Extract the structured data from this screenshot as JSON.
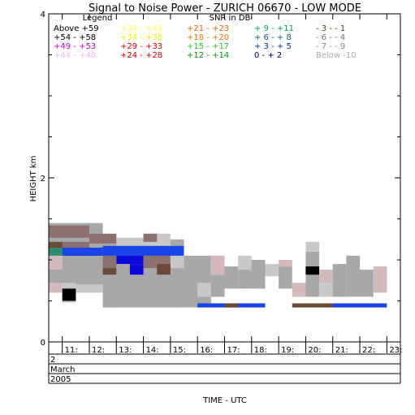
{
  "chart_data": {
    "type": "heatmap",
    "title": "Signal to Noise Power - ZURICH 06670 - LOW MODE",
    "ylabel": "HEIGHT km",
    "xlabel": "TIME - UTC",
    "ylim": [
      0,
      4
    ],
    "xlim": [
      10.5,
      23.5
    ],
    "y_ticks": [
      "0",
      "2",
      "4"
    ],
    "x_ticks": [
      {
        "x": 11,
        "label": "11:"
      },
      {
        "x": 12,
        "label": "12:"
      },
      {
        "x": 13,
        "label": "13:"
      },
      {
        "x": 14,
        "label": "14:"
      },
      {
        "x": 15,
        "label": "15:"
      },
      {
        "x": 16,
        "label": "16:"
      },
      {
        "x": 17,
        "label": "17:"
      },
      {
        "x": 18,
        "label": "18:"
      },
      {
        "x": 19,
        "label": "19:"
      },
      {
        "x": 20,
        "label": "20:"
      },
      {
        "x": 21,
        "label": "21:"
      },
      {
        "x": 22,
        "label": "22:"
      },
      {
        "x": 23,
        "label": "23:"
      }
    ],
    "date_rows": [
      "2",
      "March",
      "2005"
    ],
    "legend": {
      "title": "Legend",
      "units": "SNR in DB",
      "placement": "top",
      "entries": [
        {
          "label": "Above +59",
          "color": "#000000"
        },
        {
          "label": "+54 - +58",
          "color": "#000000"
        },
        {
          "label": "+49 - +53",
          "color": "#cc00cc"
        },
        {
          "label": "+44 - +48",
          "color": "#eebbee"
        },
        {
          "label": "+39 - +43",
          "color": "#ffff55"
        },
        {
          "label": "+34 - +38",
          "color": "#eeee00"
        },
        {
          "label": "+29 - +33",
          "color": "#dd0000"
        },
        {
          "label": "+24 - +28",
          "color": "#cc0000"
        },
        {
          "label": "+21 - +23",
          "color": "#ee6600"
        },
        {
          "label": "+18 - +20",
          "color": "#ee7700"
        },
        {
          "label": "+15 - +17",
          "color": "#22cc22"
        },
        {
          "label": "+12 - +14",
          "color": "#009900"
        },
        {
          "label": "+ 9 - +11",
          "color": "#009966"
        },
        {
          "label": "+ 6 - + 8",
          "color": "#006666"
        },
        {
          "label": "+ 3 - + 5",
          "color": "#003399"
        },
        {
          "label": "0 - + 2",
          "color": "#000066"
        },
        {
          "label": "- 3 - - 1",
          "color": "#663322"
        },
        {
          "label": "- 6 - - 4",
          "color": "#777777"
        },
        {
          "label": "- 7 - - 9",
          "color": "#888888"
        },
        {
          "label": "Below -10",
          "color": "#aaaaaa"
        }
      ]
    },
    "palette": {
      "g": "#a8a8a8",
      "l": "#c8c8c8",
      "p": "#d2b9be",
      "d": "#8c7070",
      "b": "#6b4a3a",
      "B": "#1a44e8",
      "N": "#0a0ad8",
      "k": "#000000",
      "t": "#2e8b6e"
    },
    "cells": [
      {
        "x0": 10.5,
        "x1": 12.5,
        "y0": 0.75,
        "y1": 1.45,
        "c": "g"
      },
      {
        "x0": 10.5,
        "x1": 12.0,
        "y0": 1.27,
        "y1": 1.42,
        "c": "d"
      },
      {
        "x0": 12.0,
        "x1": 12.5,
        "y0": 1.22,
        "y1": 1.32,
        "c": "l"
      },
      {
        "x0": 10.5,
        "x1": 11.0,
        "y0": 1.05,
        "y1": 1.2,
        "c": "t"
      },
      {
        "x0": 10.5,
        "x1": 11.0,
        "y0": 1.15,
        "y1": 1.22,
        "c": "b"
      },
      {
        "x0": 11.0,
        "x1": 12.0,
        "y0": 1.15,
        "y1": 1.22,
        "c": "d"
      },
      {
        "x0": 11.0,
        "x1": 12.5,
        "y0": 1.05,
        "y1": 1.15,
        "c": "B"
      },
      {
        "x0": 10.5,
        "x1": 11.0,
        "y0": 0.88,
        "y1": 1.05,
        "c": "p"
      },
      {
        "x0": 10.5,
        "x1": 12.5,
        "y0": 0.7,
        "y1": 0.82,
        "c": "g"
      },
      {
        "x0": 11.0,
        "x1": 11.5,
        "y0": 0.48,
        "y1": 0.72,
        "c": "l"
      },
      {
        "x0": 11.5,
        "x1": 12.5,
        "y0": 0.6,
        "y1": 0.7,
        "c": "l"
      },
      {
        "x0": 10.5,
        "x1": 11.0,
        "y0": 0.6,
        "y1": 0.72,
        "c": "p"
      },
      {
        "x0": 11.0,
        "x1": 11.5,
        "y0": 0.5,
        "y1": 0.65,
        "c": "k"
      },
      {
        "x0": 12.5,
        "x1": 13.0,
        "y0": 0.42,
        "y1": 0.62,
        "c": "l"
      },
      {
        "x0": 12.5,
        "x1": 15.5,
        "y0": 0.42,
        "y1": 1.25,
        "c": "g"
      },
      {
        "x0": 12.0,
        "x1": 13.0,
        "y0": 1.2,
        "y1": 1.32,
        "c": "d"
      },
      {
        "x0": 13.0,
        "x1": 14.0,
        "y0": 1.12,
        "y1": 1.27,
        "c": "l"
      },
      {
        "x0": 14.0,
        "x1": 15.0,
        "y0": 1.17,
        "y1": 1.32,
        "c": "l"
      },
      {
        "x0": 14.0,
        "x1": 14.5,
        "y0": 1.22,
        "y1": 1.32,
        "c": "d"
      },
      {
        "x0": 12.5,
        "x1": 15.5,
        "y0": 1.05,
        "y1": 1.17,
        "c": "B"
      },
      {
        "x0": 13.0,
        "x1": 14.0,
        "y0": 0.95,
        "y1": 1.05,
        "c": "N"
      },
      {
        "x0": 13.5,
        "x1": 14.0,
        "y0": 0.82,
        "y1": 0.95,
        "c": "N"
      },
      {
        "x0": 12.5,
        "x1": 13.0,
        "y0": 0.9,
        "y1": 1.05,
        "c": "d"
      },
      {
        "x0": 12.5,
        "x1": 13.0,
        "y0": 0.82,
        "y1": 0.9,
        "c": "b"
      },
      {
        "x0": 14.0,
        "x1": 15.0,
        "y0": 0.9,
        "y1": 1.05,
        "c": "d"
      },
      {
        "x0": 14.5,
        "x1": 15.0,
        "y0": 0.82,
        "y1": 0.95,
        "c": "b"
      },
      {
        "x0": 15.0,
        "x1": 15.5,
        "y0": 0.9,
        "y1": 1.05,
        "c": "l"
      },
      {
        "x0": 15.5,
        "x1": 16.5,
        "y0": 0.42,
        "y1": 1.05,
        "c": "g"
      },
      {
        "x0": 16.0,
        "x1": 16.5,
        "y0": 0.55,
        "y1": 0.72,
        "c": "l"
      },
      {
        "x0": 16.5,
        "x1": 17.0,
        "y0": 0.82,
        "y1": 1.05,
        "c": "p"
      },
      {
        "x0": 16.5,
        "x1": 17.0,
        "y0": 0.55,
        "y1": 0.82,
        "c": "g"
      },
      {
        "x0": 17.0,
        "x1": 17.5,
        "y0": 0.65,
        "y1": 0.92,
        "c": "g"
      },
      {
        "x0": 17.5,
        "x1": 18.0,
        "y0": 0.65,
        "y1": 0.88,
        "c": "g"
      },
      {
        "x0": 17.5,
        "x1": 18.0,
        "y0": 0.88,
        "y1": 1.05,
        "c": "l"
      },
      {
        "x0": 18.0,
        "x1": 18.5,
        "y0": 0.65,
        "y1": 1.0,
        "c": "g"
      },
      {
        "x0": 18.5,
        "x1": 19.0,
        "y0": 0.8,
        "y1": 0.95,
        "c": "l"
      },
      {
        "x0": 19.0,
        "x1": 19.5,
        "y0": 0.65,
        "y1": 0.92,
        "c": "g"
      },
      {
        "x0": 19.0,
        "x1": 19.5,
        "y0": 0.92,
        "y1": 1.0,
        "c": "p"
      },
      {
        "x0": 19.5,
        "x1": 20.0,
        "y0": 0.55,
        "y1": 0.72,
        "c": "p"
      },
      {
        "x0": 20.0,
        "x1": 20.5,
        "y0": 0.55,
        "y1": 1.1,
        "c": "g"
      },
      {
        "x0": 20.0,
        "x1": 20.5,
        "y0": 0.82,
        "y1": 0.92,
        "c": "k"
      },
      {
        "x0": 20.0,
        "x1": 20.5,
        "y0": 1.1,
        "y1": 1.22,
        "c": "l"
      },
      {
        "x0": 20.5,
        "x1": 21.0,
        "y0": 0.55,
        "y1": 0.72,
        "c": "l"
      },
      {
        "x0": 20.5,
        "x1": 21.0,
        "y0": 0.72,
        "y1": 0.88,
        "c": "p"
      },
      {
        "x0": 21.0,
        "x1": 21.5,
        "y0": 0.55,
        "y1": 0.95,
        "c": "g"
      },
      {
        "x0": 21.5,
        "x1": 22.0,
        "y0": 0.55,
        "y1": 1.05,
        "c": "g"
      },
      {
        "x0": 22.0,
        "x1": 22.5,
        "y0": 0.55,
        "y1": 0.88,
        "c": "g"
      },
      {
        "x0": 22.5,
        "x1": 23.0,
        "y0": 0.6,
        "y1": 0.92,
        "c": "p"
      },
      {
        "x0": 16.0,
        "x1": 18.5,
        "y0": 0.42,
        "y1": 0.47,
        "c": "B"
      },
      {
        "x0": 17.0,
        "x1": 17.5,
        "y0": 0.42,
        "y1": 0.47,
        "c": "b"
      },
      {
        "x0": 19.5,
        "x1": 21.0,
        "y0": 0.42,
        "y1": 0.47,
        "c": "b"
      },
      {
        "x0": 21.0,
        "x1": 23.0,
        "y0": 0.42,
        "y1": 0.47,
        "c": "B"
      }
    ]
  }
}
